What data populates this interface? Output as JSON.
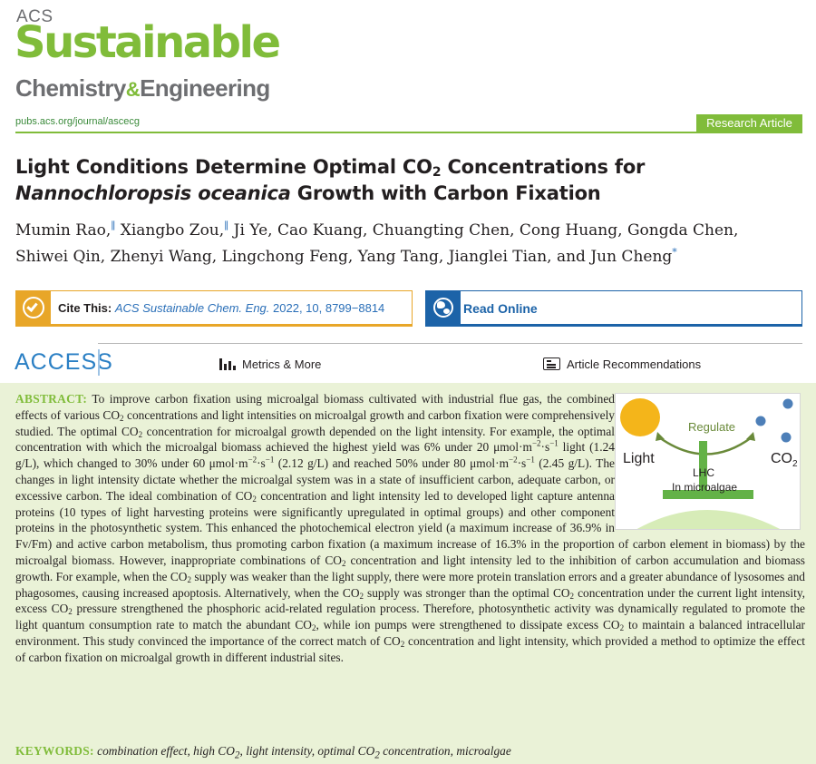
{
  "journal": {
    "logo_acs": "ACS",
    "logo_main": "Sustainable",
    "logo_sub_1": "Chemistry",
    "logo_amp": "&",
    "logo_sub_2": "Engineering",
    "url": "pubs.acs.org/journal/ascecg",
    "article_type": "Research Article"
  },
  "article": {
    "title_1": "Light Conditions Determine Optimal CO",
    "title_sub": "2",
    "title_2": " Concentrations for",
    "title_italic": "Nannochloropsis oceanica",
    "title_3": " Growth with Carbon Fixation",
    "authors_line1": [
      {
        "name": "Mumin Rao,",
        "mark": "∥"
      },
      {
        "name": " Xiangbo Zou,",
        "mark": "∥"
      },
      {
        "name": " Ji Ye, Cao Kuang, Chuangting Chen, Cong Huang, Gongda Chen,",
        "mark": ""
      }
    ],
    "authors_line2": "Shiwei Qin, Zhenyi Wang, Lingchong Feng, Yang Tang, Jianglei Tian, and Jun Cheng",
    "corresponding_mark": "*"
  },
  "cite": {
    "label": "Cite This:",
    "journal_abbrev": "ACS Sustainable Chem. Eng.",
    "details": " 2022, 10, 8799−8814"
  },
  "read_online": {
    "label": "Read Online"
  },
  "access": {
    "label": "ACCESS",
    "metrics_label": "Metrics & More",
    "recommendations_label": "Article Recommendations"
  },
  "toc_graphic": {
    "regulate": "Regulate",
    "light": "Light",
    "co2": "CO",
    "co2_sub": "2",
    "lhc": "LHC",
    "microalgae": "In microalgae",
    "colors": {
      "sun": "#f4b51a",
      "arrow": "#6a8a3a",
      "bubble": "#4d7fb8",
      "lhc": "#63b247",
      "cell": "#d7ecb8"
    }
  },
  "abstract": {
    "label": "ABSTRACT:",
    "text_parts": [
      {
        "t": " To improve carbon fixation using microalgal biomass cultivated with industrial flue gas, the combined effects of various CO"
      },
      {
        "sub": "2"
      },
      {
        "t": " concentrations and light intensities on microalgal growth and carbon fixation were comprehensively studied. The optimal CO"
      },
      {
        "sub": "2"
      },
      {
        "t": " concentration for microalgal growth depended on the light intensity. For example, the optimal concentration with which the microalgal biomass achieved the highest yield was 6% under 20 μmol·m"
      },
      {
        "sup": "−2"
      },
      {
        "t": "·s"
      },
      {
        "sup": "−1"
      },
      {
        "t": " light (1.24 g/L), which changed to 30% under 60 μmol·m"
      },
      {
        "sup": "−2"
      },
      {
        "t": "·s"
      },
      {
        "sup": "−1"
      },
      {
        "t": " (2.12 g/L) and reached 50% under 80 μmol·m"
      },
      {
        "sup": "−2"
      },
      {
        "t": "·s"
      },
      {
        "sup": "−1"
      },
      {
        "t": " (2.45 g/L). The changes in light intensity dictate whether the microalgal system was in a state of insufficient carbon, adequate carbon, or excessive carbon. The ideal combination of CO"
      },
      {
        "sub": "2"
      },
      {
        "t": " concentration and light intensity led to developed light capture antenna proteins (10 types of light harvesting proteins were significantly upregulated in optimal groups) and other component proteins in the photosynthetic system. This enhanced the photochemical electron yield (a maximum increase of 36.9% in Fv/Fm) and active carbon metabolism, thus promoting carbon fixation (a maximum increase of 16.3% in the proportion of carbon element in biomass) by the microalgal biomass. However, inappropriate combinations of CO"
      },
      {
        "sub": "2"
      },
      {
        "t": " concentration and light intensity led to the inhibition of carbon accumulation and biomass growth. For example, when the CO"
      },
      {
        "sub": "2"
      },
      {
        "t": " supply was weaker than the light supply, there were more protein translation errors and a greater abundance of lysosomes and phagosomes, causing increased apoptosis. Alternatively, when the CO"
      },
      {
        "sub": "2"
      },
      {
        "t": " supply was stronger than the optimal CO"
      },
      {
        "sub": "2"
      },
      {
        "t": " concentration under the current light intensity, excess CO"
      },
      {
        "sub": "2"
      },
      {
        "t": " pressure strengthened the phosphoric acid-related regulation process. Therefore, photosynthetic activity was dynamically regulated to promote the light quantum consumption rate to match the abundant CO"
      },
      {
        "sub": "2"
      },
      {
        "t": ", while ion pumps were strengthened to dissipate excess CO"
      },
      {
        "sub": "2"
      },
      {
        "t": " to maintain a balanced intracellular environment. This study convinced the importance of the correct match of CO"
      },
      {
        "sub": "2"
      },
      {
        "t": " concentration and light intensity, which provided a method to optimize the effect of carbon fixation on microalgal growth in different industrial sites."
      }
    ]
  },
  "keywords": {
    "label": "KEYWORDS:",
    "items": [
      [
        {
          "t": "combination effect"
        }
      ],
      [
        {
          "t": "high CO"
        },
        {
          "sub": "2"
        }
      ],
      [
        {
          "t": "light intensity"
        }
      ],
      [
        {
          "t": "optimal CO"
        },
        {
          "sub": "2"
        },
        {
          "t": " concentration"
        }
      ],
      [
        {
          "t": "microalgae"
        }
      ]
    ]
  }
}
